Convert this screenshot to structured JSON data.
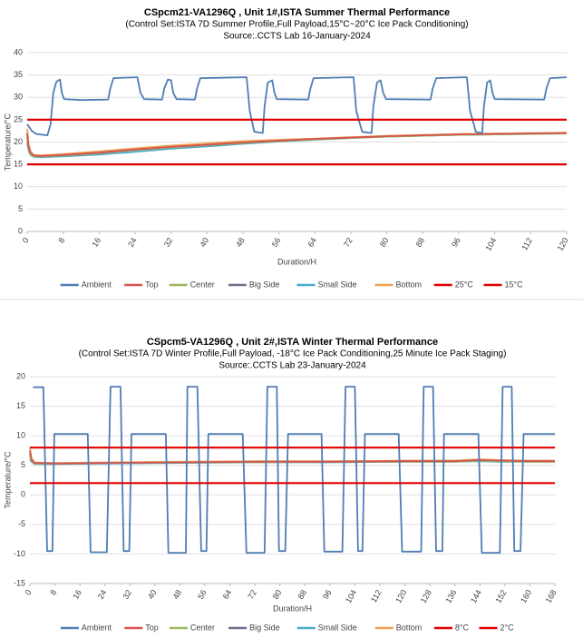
{
  "chart_data": [
    {
      "type": "line",
      "title": "CSpcm21-VA1296Q  , Unit 1#,ISTA Summer Thermal Performance",
      "subtitle": "(Control Set:ISTA 7D Summer Profile,Full Payload,15°C~20°C Ice Pack Conditioning)",
      "source": "Source:.CCTS Lab  16-January-2024",
      "x_label": "Duration/H",
      "y_label": "Temperature/°C",
      "xlim": [
        0,
        120
      ],
      "xticks": [
        0,
        8,
        16,
        24,
        32,
        40,
        48,
        56,
        64,
        72,
        80,
        88,
        96,
        104,
        112,
        120
      ],
      "ylim": [
        0,
        40
      ],
      "yticks": [
        0,
        5,
        10,
        15,
        20,
        25,
        30,
        35,
        40
      ],
      "grid": true,
      "series": [
        {
          "name": "Ambient",
          "color": "#4f7db5",
          "x": [
            0,
            1,
            2,
            4.5,
            5.2,
            5.8,
            6.5,
            7.3,
            7.7,
            8.2,
            12,
            18,
            18.5,
            19.2,
            24.5,
            25.2,
            26,
            30,
            30.5,
            31.3,
            32,
            32.5,
            33.2,
            37.3,
            37.8,
            38.5,
            48.8,
            49.5,
            50.5,
            52.4,
            52.8,
            53.5,
            54.5,
            55,
            55.5,
            62.5,
            63,
            63.7,
            72.6,
            73.2,
            74.5,
            76.6,
            77,
            77.8,
            78.6,
            79.2,
            79.8,
            89.7,
            90.2,
            91,
            97.8,
            98.5,
            99.8,
            101.2,
            101.6,
            102.3,
            103,
            103.5,
            104,
            115,
            115.5,
            116.3,
            120
          ],
          "values": [
            24,
            22.5,
            21.8,
            21.5,
            24,
            31,
            33.5,
            34,
            31,
            29.6,
            29.4,
            29.5,
            32,
            34.3,
            34.5,
            31,
            29.6,
            29.5,
            32,
            34,
            33.8,
            31,
            29.6,
            29.5,
            32,
            34.3,
            34.5,
            27,
            22.3,
            22,
            28,
            33.3,
            33.8,
            31,
            29.6,
            29.5,
            32,
            34.3,
            34.5,
            27,
            22.3,
            22,
            28,
            33.3,
            33.8,
            31,
            29.6,
            29.5,
            32,
            34.3,
            34.5,
            27,
            22.3,
            22,
            28,
            33.3,
            33.8,
            31,
            29.6,
            29.5,
            32,
            34.3,
            34.5
          ]
        },
        {
          "name": "Top",
          "color": "#d9534f",
          "x": [
            0,
            0.3,
            0.8,
            1.5,
            3,
            8,
            16,
            24,
            32,
            40,
            48,
            56,
            64,
            72,
            80,
            88,
            96,
            104,
            112,
            120
          ],
          "values": [
            22,
            19,
            17.5,
            17,
            16.9,
            17.1,
            17.6,
            18.3,
            18.9,
            19.4,
            19.9,
            20.3,
            20.7,
            21,
            21.3,
            21.5,
            21.7,
            21.8,
            21.9,
            22
          ]
        },
        {
          "name": "Center",
          "color": "#9bbb59",
          "x": [
            0,
            0.3,
            0.8,
            1.5,
            3,
            8,
            16,
            24,
            32,
            40,
            48,
            56,
            64,
            72,
            80,
            88,
            96,
            104,
            112,
            120
          ],
          "values": [
            21,
            18.5,
            17.2,
            16.8,
            16.8,
            17,
            17.5,
            18.2,
            18.8,
            19.3,
            19.8,
            20.2,
            20.6,
            20.9,
            21.2,
            21.4,
            21.6,
            21.7,
            21.8,
            21.9
          ]
        },
        {
          "name": "Big Side",
          "color": "#7a6a8c",
          "x": [
            0,
            0.3,
            0.8,
            1.5,
            3,
            8,
            16,
            24,
            32,
            40,
            48,
            56,
            64,
            72,
            80,
            88,
            96,
            104,
            112,
            120
          ],
          "values": [
            21.5,
            18.8,
            17.3,
            16.9,
            16.8,
            17.1,
            17.6,
            18.3,
            18.9,
            19.4,
            19.9,
            20.3,
            20.7,
            21,
            21.3,
            21.5,
            21.7,
            21.8,
            21.9,
            22
          ]
        },
        {
          "name": "Small Side",
          "color": "#4bacc6",
          "x": [
            0,
            0.3,
            0.8,
            1.5,
            3,
            8,
            16,
            24,
            32,
            40,
            48,
            56,
            64,
            72,
            80,
            88,
            96,
            104,
            112,
            120
          ],
          "values": [
            20,
            18,
            17,
            16.7,
            16.6,
            16.8,
            17.2,
            17.8,
            18.5,
            19,
            19.6,
            20.1,
            20.5,
            20.9,
            21.2,
            21.4,
            21.6,
            21.7,
            21.8,
            21.9
          ]
        },
        {
          "name": "Bottom",
          "color": "#f0a050",
          "x": [
            0,
            0.3,
            0.8,
            1.5,
            3,
            8,
            16,
            24,
            32,
            40,
            48,
            56,
            64,
            72,
            80,
            88,
            96,
            104,
            112,
            120
          ],
          "values": [
            23,
            19.5,
            17.7,
            17.1,
            17,
            17.3,
            17.9,
            18.6,
            19.2,
            19.7,
            20.2,
            20.5,
            20.8,
            21.1,
            21.4,
            21.6,
            21.8,
            21.9,
            22,
            22.1
          ]
        },
        {
          "name": "25°C",
          "color": "#e00000",
          "x": [
            0,
            120
          ],
          "values": [
            25,
            25
          ]
        },
        {
          "name": "15°C",
          "color": "#e00000",
          "x": [
            0,
            120
          ],
          "values": [
            15,
            15
          ]
        }
      ]
    },
    {
      "type": "line",
      "title": "CSpcm5-VA1296Q  , Unit 2#,ISTA Winter Thermal Performance",
      "subtitle": "(Control Set:ISTA 7D Winter Profile,Full Payload, -18°C Ice Pack Conditioning,25 Minute Ice Pack Staging)",
      "source": "Source:.CCTS Lab  23-January-2024",
      "x_label": "Duration/H",
      "y_label": "Temperature/°C",
      "xlim": [
        0,
        168
      ],
      "xticks": [
        0,
        8,
        16,
        24,
        32,
        40,
        48,
        56,
        64,
        72,
        80,
        88,
        96,
        104,
        112,
        120,
        128,
        136,
        144,
        152,
        160,
        168
      ],
      "ylim": [
        -15,
        20
      ],
      "yticks": [
        -15,
        -10,
        -5,
        0,
        5,
        10,
        15,
        20
      ],
      "grid": true,
      "series": [
        {
          "name": "Ambient",
          "color": "#4f7db5",
          "x": [
            1,
            4.3,
            5.5,
            7.2,
            7.8,
            18.5,
            19.4,
            24.6,
            25.8,
            29,
            30,
            31.8,
            32.5,
            43.5,
            44.3,
            49.9,
            50.4,
            53.6,
            54.8,
            56.5,
            57.1,
            68.1,
            69.3,
            75.1,
            76,
            79,
            79.7,
            81.7,
            82.6,
            93.3,
            94.2,
            100,
            101,
            104,
            105,
            106.4,
            107.2,
            118,
            119.1,
            125.2,
            126,
            129,
            130,
            132,
            132.5,
            143.5,
            144.6,
            150.4,
            151.3,
            154.2,
            155,
            157,
            158,
            168
          ],
          "values": [
            18.2,
            18.2,
            -9.5,
            -9.5,
            10.3,
            10.3,
            -9.7,
            -9.7,
            18.3,
            18.3,
            -9.5,
            -9.5,
            10.3,
            10.3,
            -9.8,
            -9.8,
            18.3,
            18.3,
            -9.5,
            -9.5,
            10.3,
            10.3,
            -9.8,
            -9.8,
            18.3,
            18.3,
            -9.5,
            -9.5,
            10.3,
            10.3,
            -9.6,
            -9.6,
            18.3,
            18.3,
            -9.5,
            -9.5,
            10.3,
            10.3,
            -9.6,
            -9.6,
            18.3,
            18.3,
            -9.5,
            -9.5,
            10.3,
            10.3,
            -9.8,
            -9.8,
            18.3,
            18.3,
            -9.5,
            -9.5,
            10.3,
            10.3
          ]
        },
        {
          "name": "Top",
          "color": "#d9534f",
          "x": [
            0,
            0.5,
            1.5,
            8,
            24,
            48,
            72,
            96,
            120,
            136,
            144,
            150,
            160,
            168
          ],
          "values": [
            7.5,
            6,
            5.4,
            5.3,
            5.4,
            5.5,
            5.6,
            5.6,
            5.7,
            5.7,
            5.9,
            5.8,
            5.7,
            5.7
          ]
        },
        {
          "name": "Center",
          "color": "#9bbb59",
          "x": [
            0,
            0.5,
            1.5,
            8,
            24,
            48,
            72,
            96,
            120,
            136,
            144,
            150,
            160,
            168
          ],
          "values": [
            6.5,
            5.8,
            5.3,
            5.3,
            5.4,
            5.5,
            5.5,
            5.6,
            5.6,
            5.6,
            5.8,
            5.7,
            5.6,
            5.6
          ]
        },
        {
          "name": "Big Side",
          "color": "#7a6a8c",
          "x": [
            0,
            0.5,
            1.5,
            8,
            24,
            48,
            72,
            96,
            120,
            136,
            144,
            150,
            160,
            168
          ],
          "values": [
            7,
            5.9,
            5.4,
            5.3,
            5.4,
            5.5,
            5.6,
            5.6,
            5.7,
            5.7,
            5.9,
            5.8,
            5.7,
            5.7
          ]
        },
        {
          "name": "Small Side",
          "color": "#4bacc6",
          "x": [
            0,
            0.5,
            1.5,
            8,
            24,
            48,
            72,
            96,
            120,
            136,
            144,
            150,
            160,
            168
          ],
          "values": [
            6,
            5.6,
            5.2,
            5.2,
            5.3,
            5.4,
            5.5,
            5.5,
            5.6,
            5.6,
            5.7,
            5.6,
            5.6,
            5.6
          ]
        },
        {
          "name": "Bottom",
          "color": "#f0a050",
          "x": [
            0,
            0.5,
            1.5,
            8,
            24,
            48,
            72,
            96,
            120,
            136,
            144,
            150,
            160,
            168
          ],
          "values": [
            8,
            6.2,
            5.5,
            5.4,
            5.5,
            5.6,
            5.7,
            5.7,
            5.8,
            5.8,
            6,
            5.9,
            5.8,
            5.8
          ]
        },
        {
          "name": "8°C",
          "color": "#e00000",
          "x": [
            0,
            168
          ],
          "values": [
            8,
            8
          ]
        },
        {
          "name": "2°C",
          "color": "#e00000",
          "x": [
            0,
            168
          ],
          "values": [
            2,
            2
          ]
        }
      ]
    }
  ]
}
